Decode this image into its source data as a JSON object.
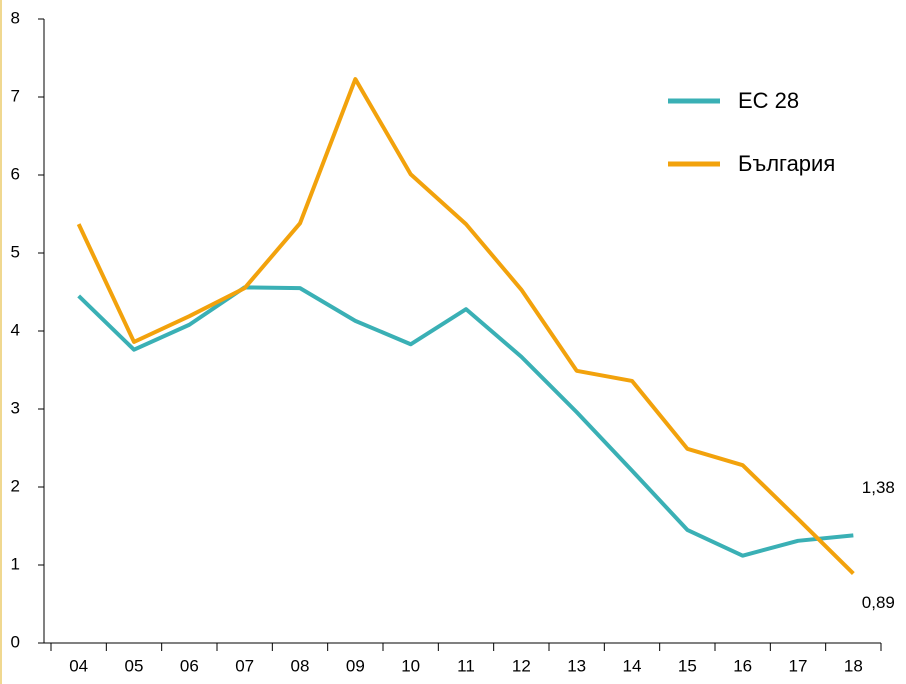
{
  "chart_data": {
    "type": "line",
    "categories": [
      "04",
      "05",
      "06",
      "07",
      "08",
      "09",
      "10",
      "11",
      "12",
      "13",
      "14",
      "15",
      "16",
      "17",
      "18"
    ],
    "series": [
      {
        "name": "ЕС 28",
        "color": "#3ab0b5",
        "values": [
          4.45,
          3.76,
          4.08,
          4.56,
          4.55,
          4.13,
          3.83,
          4.28,
          3.67,
          2.96,
          2.21,
          1.45,
          1.12,
          1.31,
          1.38
        ],
        "value_labels": [
          null,
          null,
          null,
          null,
          null,
          null,
          null,
          null,
          null,
          null,
          null,
          null,
          null,
          null,
          "1,38"
        ]
      },
      {
        "name": "България",
        "color": "#f2a20c",
        "values": [
          5.37,
          3.86,
          4.19,
          4.55,
          5.38,
          7.23,
          6.01,
          5.37,
          4.53,
          3.49,
          3.36,
          2.49,
          2.28,
          1.59,
          0.89
        ],
        "value_labels": [
          null,
          null,
          null,
          null,
          null,
          null,
          null,
          null,
          null,
          null,
          null,
          null,
          null,
          null,
          "0,89"
        ]
      }
    ],
    "ylim": [
      0,
      8
    ],
    "yticks": [
      0,
      1,
      2,
      3,
      4,
      5,
      6,
      7,
      8
    ],
    "legend": "upper right"
  }
}
